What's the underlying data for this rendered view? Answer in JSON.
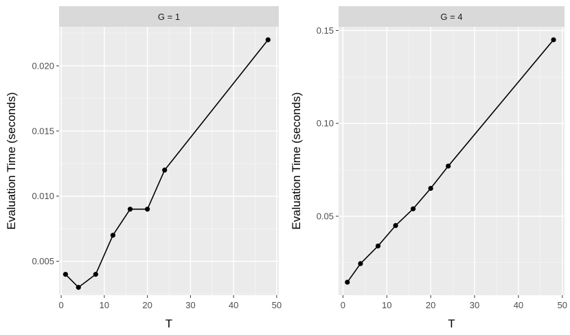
{
  "colors": {
    "panel_background": "#ebebeb",
    "strip_background": "#d9d9d9",
    "grid_major": "#ffffff",
    "grid_minor": "#f5f5f5",
    "series": "#000000",
    "tick": "#333333",
    "tick_label": "#4d4d4d"
  },
  "chart_data": [
    {
      "type": "line",
      "facet_label": "G = 1",
      "xlabel": "T",
      "ylabel": "Evaluation Time (seconds)",
      "xlim": [
        -0.5,
        50.5
      ],
      "ylim": [
        0.0024,
        0.023
      ],
      "x_ticks": [
        0,
        10,
        20,
        30,
        40,
        50
      ],
      "x_tick_labels": [
        "0",
        "10",
        "20",
        "30",
        "40",
        "50"
      ],
      "y_ticks": [
        0.005,
        0.01,
        0.015,
        0.02
      ],
      "y_tick_labels": [
        "0.005",
        "0.010",
        "0.015",
        "0.020"
      ],
      "grid": true,
      "x": [
        1,
        4,
        8,
        12,
        16,
        20,
        24,
        48
      ],
      "y": [
        0.004,
        0.003,
        0.004,
        0.007,
        0.009,
        0.009,
        0.012,
        0.022
      ]
    },
    {
      "type": "line",
      "facet_label": "G = 4",
      "xlabel": "T",
      "ylabel": "Evaluation Time (seconds)",
      "xlim": [
        -1.0,
        50.5
      ],
      "ylim": [
        0.0075,
        0.152
      ],
      "x_ticks": [
        0,
        10,
        20,
        30,
        40,
        50
      ],
      "x_tick_labels": [
        "0",
        "10",
        "20",
        "30",
        "40",
        "50"
      ],
      "y_ticks": [
        0.05,
        0.1,
        0.15
      ],
      "y_tick_labels": [
        "0.05",
        "0.10",
        "0.15"
      ],
      "grid": true,
      "x": [
        1,
        4,
        8,
        12,
        16,
        20,
        24,
        48
      ],
      "y": [
        0.0145,
        0.0245,
        0.034,
        0.045,
        0.054,
        0.065,
        0.077,
        0.145
      ]
    }
  ]
}
